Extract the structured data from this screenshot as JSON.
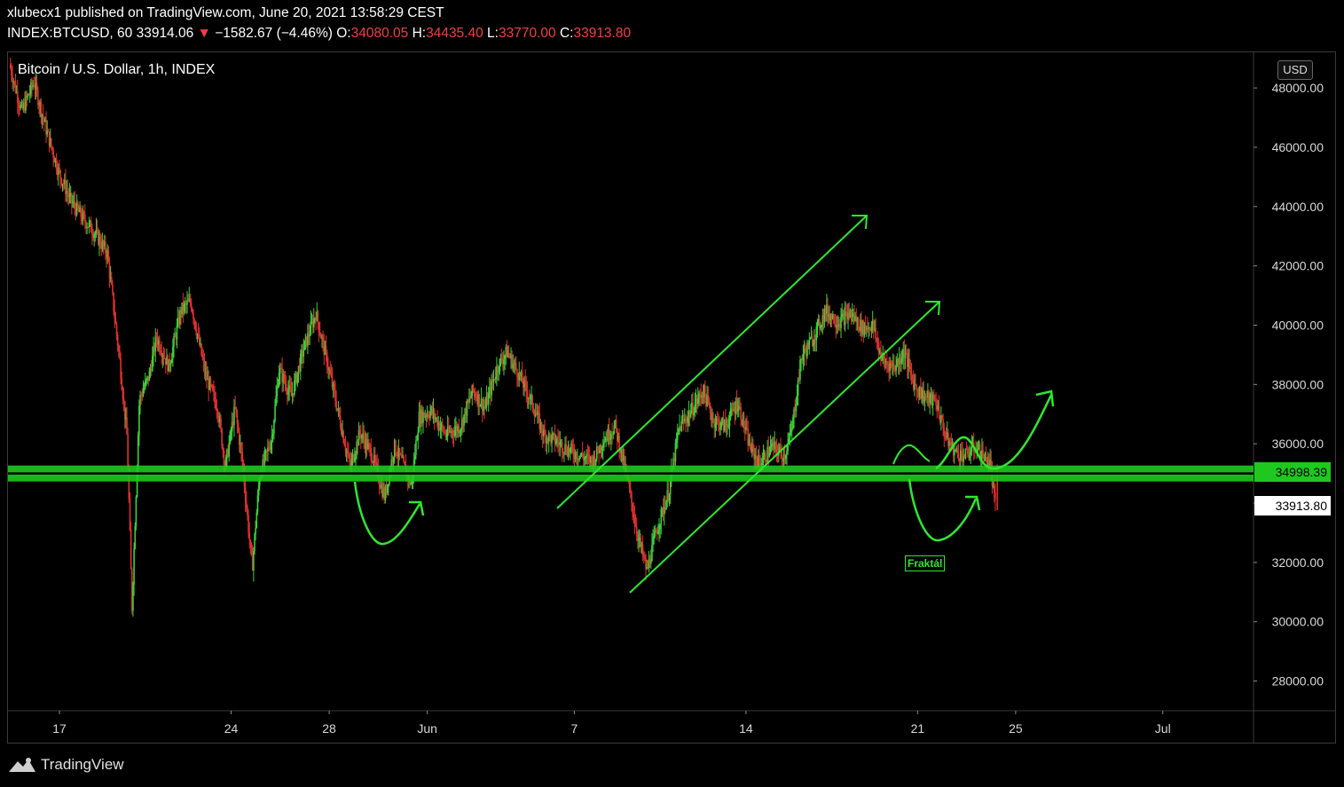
{
  "header": {
    "line1": "xlubecx1 published on TradingView.com, June 20, 2021 13:58:29 CEST",
    "symbol": "INDEX:BTCUSD, 60",
    "last": "33914.06",
    "arrow": "▼",
    "change": "−1582.67 (−4.46%)",
    "o_label": "O:",
    "o_value": "34080.05",
    "h_label": "H:",
    "h_value": "34435.40",
    "l_label": "L:",
    "l_value": "33770.00",
    "c_label": "C:",
    "c_value": "33913.80"
  },
  "chart_title": "Bitcoin / U.S. Dollar, 1h, INDEX",
  "currency": "USD",
  "price_level_label": "34998.39",
  "last_price_label": "33913.80",
  "annotation": "Fraktál",
  "logo_text": "TradingView",
  "colors": {
    "up": "#3bd13b",
    "down": "#e03030",
    "level": "#1ec81e",
    "drawing": "#2ee82e",
    "background": "#000000"
  },
  "chart_data": {
    "type": "line",
    "title": "Bitcoin / U.S. Dollar, 1h, INDEX",
    "x_ticks": [
      "17",
      "24",
      "28",
      "Jun",
      "7",
      "14",
      "21",
      "25",
      "Jul"
    ],
    "y_ticks": [
      "28000.00",
      "30000.00",
      "32000.00",
      "34000.00",
      "36000.00",
      "38000.00",
      "40000.00",
      "42000.00",
      "44000.00",
      "46000.00",
      "48000.00"
    ],
    "ylim": [
      27000,
      49200
    ],
    "x_days": [
      17,
      24,
      28,
      32,
      38,
      45,
      52,
      56,
      62
    ],
    "xlim": [
      14.9,
      65.7
    ],
    "series": [
      {
        "values_by_day": [
          [
            15.0,
            48800
          ],
          [
            15.5,
            47200
          ],
          [
            16.0,
            48200
          ],
          [
            16.5,
            46600
          ],
          [
            17.0,
            45200
          ],
          [
            17.5,
            44200
          ],
          [
            18.0,
            43600
          ],
          [
            18.5,
            43100
          ],
          [
            19.0,
            42400
          ],
          [
            19.5,
            38800
          ],
          [
            19.8,
            36200
          ],
          [
            20.0,
            30500
          ],
          [
            20.3,
            37500
          ],
          [
            20.7,
            38300
          ],
          [
            21.0,
            39600
          ],
          [
            21.5,
            38600
          ],
          [
            22.0,
            40500
          ],
          [
            22.4,
            40800
          ],
          [
            23.0,
            38300
          ],
          [
            23.5,
            37200
          ],
          [
            23.8,
            35200
          ],
          [
            24.2,
            37200
          ],
          [
            24.5,
            35400
          ],
          [
            24.9,
            31800
          ],
          [
            25.2,
            34900
          ],
          [
            25.7,
            36200
          ],
          [
            26.0,
            38500
          ],
          [
            26.5,
            37600
          ],
          [
            27.0,
            39200
          ],
          [
            27.5,
            40400
          ],
          [
            28.0,
            38600
          ],
          [
            28.4,
            37100
          ],
          [
            28.9,
            35200
          ],
          [
            29.3,
            36400
          ],
          [
            29.8,
            35600
          ],
          [
            30.3,
            34200
          ],
          [
            30.7,
            35900
          ],
          [
            31.0,
            35400
          ],
          [
            31.4,
            34600
          ],
          [
            31.7,
            36900
          ],
          [
            32.2,
            37100
          ],
          [
            32.8,
            36300
          ],
          [
            33.4,
            36600
          ],
          [
            33.9,
            37800
          ],
          [
            34.4,
            37200
          ],
          [
            34.9,
            38600
          ],
          [
            35.3,
            39100
          ],
          [
            35.8,
            38300
          ],
          [
            36.3,
            37400
          ],
          [
            36.8,
            36300
          ],
          [
            37.3,
            36100
          ],
          [
            37.8,
            35800
          ],
          [
            38.3,
            35600
          ],
          [
            38.8,
            35400
          ],
          [
            39.2,
            36100
          ],
          [
            39.7,
            36600
          ],
          [
            40.2,
            34800
          ],
          [
            40.6,
            33000
          ],
          [
            41.0,
            31700
          ],
          [
            41.4,
            33100
          ],
          [
            41.9,
            34400
          ],
          [
            42.3,
            36500
          ],
          [
            42.8,
            37100
          ],
          [
            43.3,
            37800
          ],
          [
            43.7,
            36800
          ],
          [
            44.2,
            36600
          ],
          [
            44.7,
            37400
          ],
          [
            45.2,
            35900
          ],
          [
            45.6,
            35300
          ],
          [
            46.1,
            35900
          ],
          [
            46.6,
            35600
          ],
          [
            46.9,
            36400
          ],
          [
            47.3,
            38900
          ],
          [
            47.8,
            39600
          ],
          [
            48.3,
            40500
          ],
          [
            48.8,
            40100
          ],
          [
            49.3,
            40400
          ],
          [
            49.8,
            39900
          ],
          [
            50.2,
            40000
          ],
          [
            50.6,
            38800
          ],
          [
            51.1,
            38600
          ],
          [
            51.5,
            39100
          ],
          [
            51.9,
            38000
          ],
          [
            52.3,
            37600
          ],
          [
            52.8,
            37400
          ],
          [
            53.2,
            36200
          ],
          [
            53.6,
            35700
          ],
          [
            54.0,
            35600
          ],
          [
            54.4,
            35900
          ],
          [
            54.8,
            35500
          ],
          [
            55.0,
            35300
          ],
          [
            55.2,
            33900
          ]
        ]
      }
    ],
    "level": 34998.39,
    "last_price": 33913.8
  }
}
